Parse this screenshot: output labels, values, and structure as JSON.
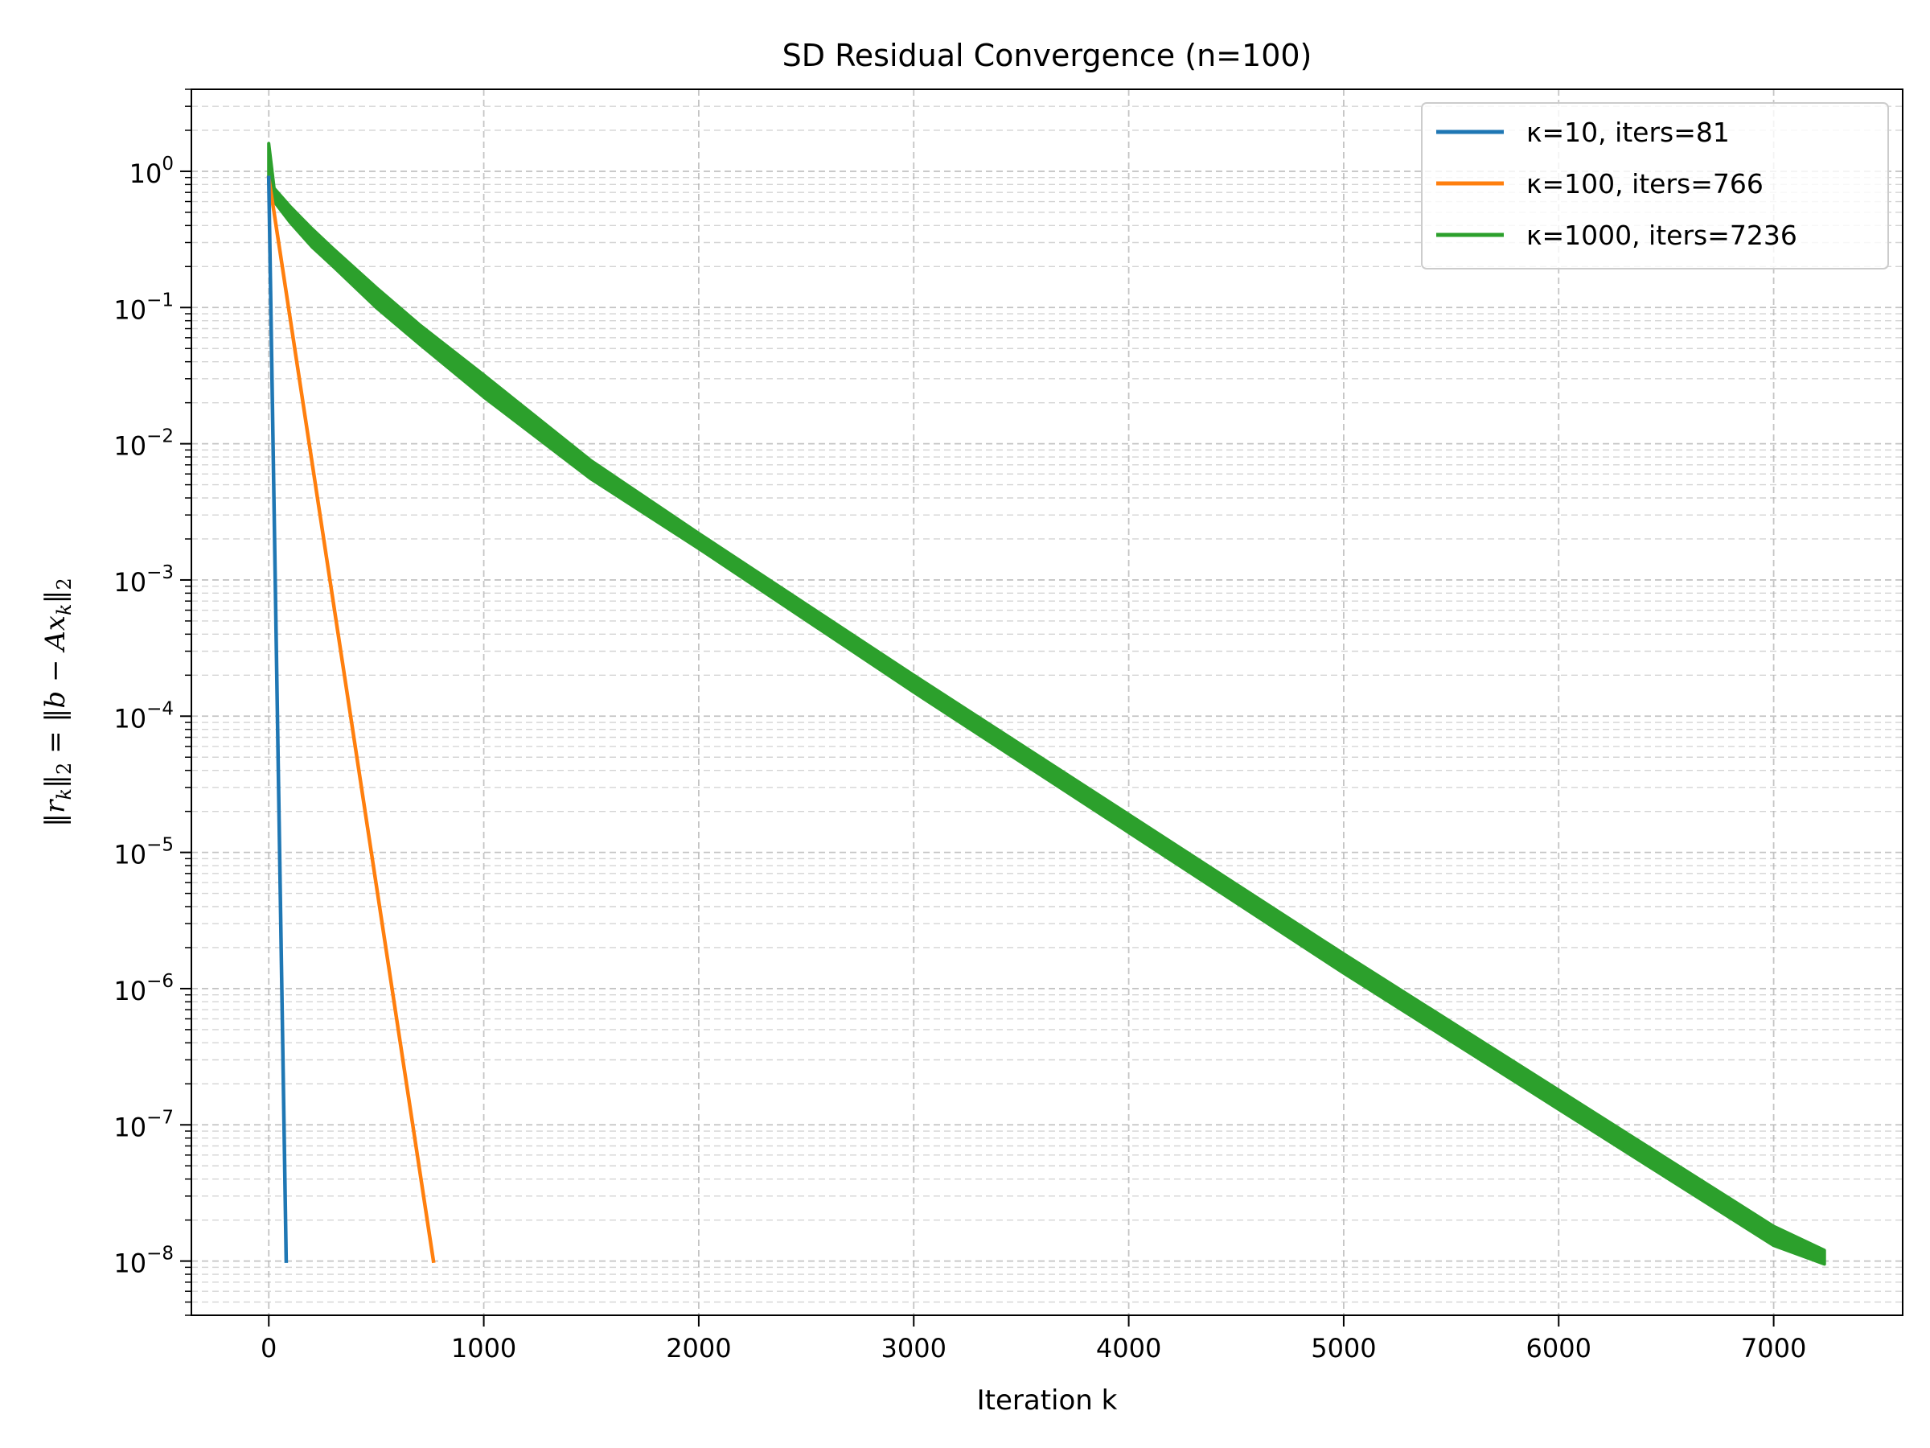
{
  "chart_data": {
    "type": "line",
    "title": "SD Residual Convergence (n=100)",
    "xlabel": "Iteration k",
    "ylabel": "‖r_k‖₂ = ‖b − Ax_k‖₂",
    "ylabel_parts": {
      "lhs_open": "‖",
      "lhs_var": "r",
      "lhs_sub": "k",
      "lhs_close": "‖",
      "lhs_norm_sub": "2",
      "eq": " = ",
      "rhs_open": "‖",
      "rhs_b": "b",
      "rhs_minus": " − ",
      "rhs_A": "Ax",
      "rhs_sub": "k",
      "rhs_close": "‖",
      "rhs_norm_sub": "2"
    },
    "xscale": "linear",
    "yscale": "log",
    "xlim": [
      -360,
      7600
    ],
    "ylim": [
      4e-09,
      4
    ],
    "xticks": [
      0,
      1000,
      2000,
      3000,
      4000,
      5000,
      6000,
      7000
    ],
    "xtick_labels": [
      "0",
      "1000",
      "2000",
      "3000",
      "4000",
      "5000",
      "6000",
      "7000"
    ],
    "yticks": [
      1e-08,
      1e-07,
      1e-06,
      1e-05,
      0.0001,
      0.001,
      0.01,
      0.1,
      1
    ],
    "ytick_labels": [
      {
        "base": "10",
        "exp": "−8"
      },
      {
        "base": "10",
        "exp": "−7"
      },
      {
        "base": "10",
        "exp": "−6"
      },
      {
        "base": "10",
        "exp": "−5"
      },
      {
        "base": "10",
        "exp": "−4"
      },
      {
        "base": "10",
        "exp": "−3"
      },
      {
        "base": "10",
        "exp": "−2"
      },
      {
        "base": "10",
        "exp": "−1"
      },
      {
        "base": "10",
        "exp": "0"
      }
    ],
    "grid": true,
    "legend_position": "top-right",
    "series": [
      {
        "name": "κ=10, iters=81",
        "color": "#1f77b4",
        "band": false,
        "x": [
          0,
          81
        ],
        "y": [
          0.9,
          1e-08
        ]
      },
      {
        "name": "κ=100, iters=766",
        "color": "#ff7f0e",
        "band": false,
        "x": [
          0,
          766
        ],
        "y": [
          0.9,
          1e-08
        ]
      },
      {
        "name": "κ=1000, iters=7236",
        "color": "#2ca02c",
        "band": true,
        "x": [
          0,
          25,
          100,
          200,
          300,
          500,
          700,
          1000,
          1500,
          2000,
          3000,
          4000,
          5000,
          6000,
          7000,
          7236
        ],
        "y_upper": [
          1.6,
          0.75,
          0.55,
          0.38,
          0.27,
          0.14,
          0.075,
          0.032,
          0.0075,
          0.0022,
          0.0002,
          1.9e-05,
          1.8e-06,
          1.8e-07,
          1.8e-08,
          1.2e-08
        ],
        "y_lower": [
          0.8,
          0.6,
          0.42,
          0.28,
          0.2,
          0.1,
          0.054,
          0.022,
          0.0055,
          0.0017,
          0.00015,
          1.4e-05,
          1.3e-06,
          1.3e-07,
          1.3e-08,
          9.5e-09
        ]
      }
    ]
  }
}
